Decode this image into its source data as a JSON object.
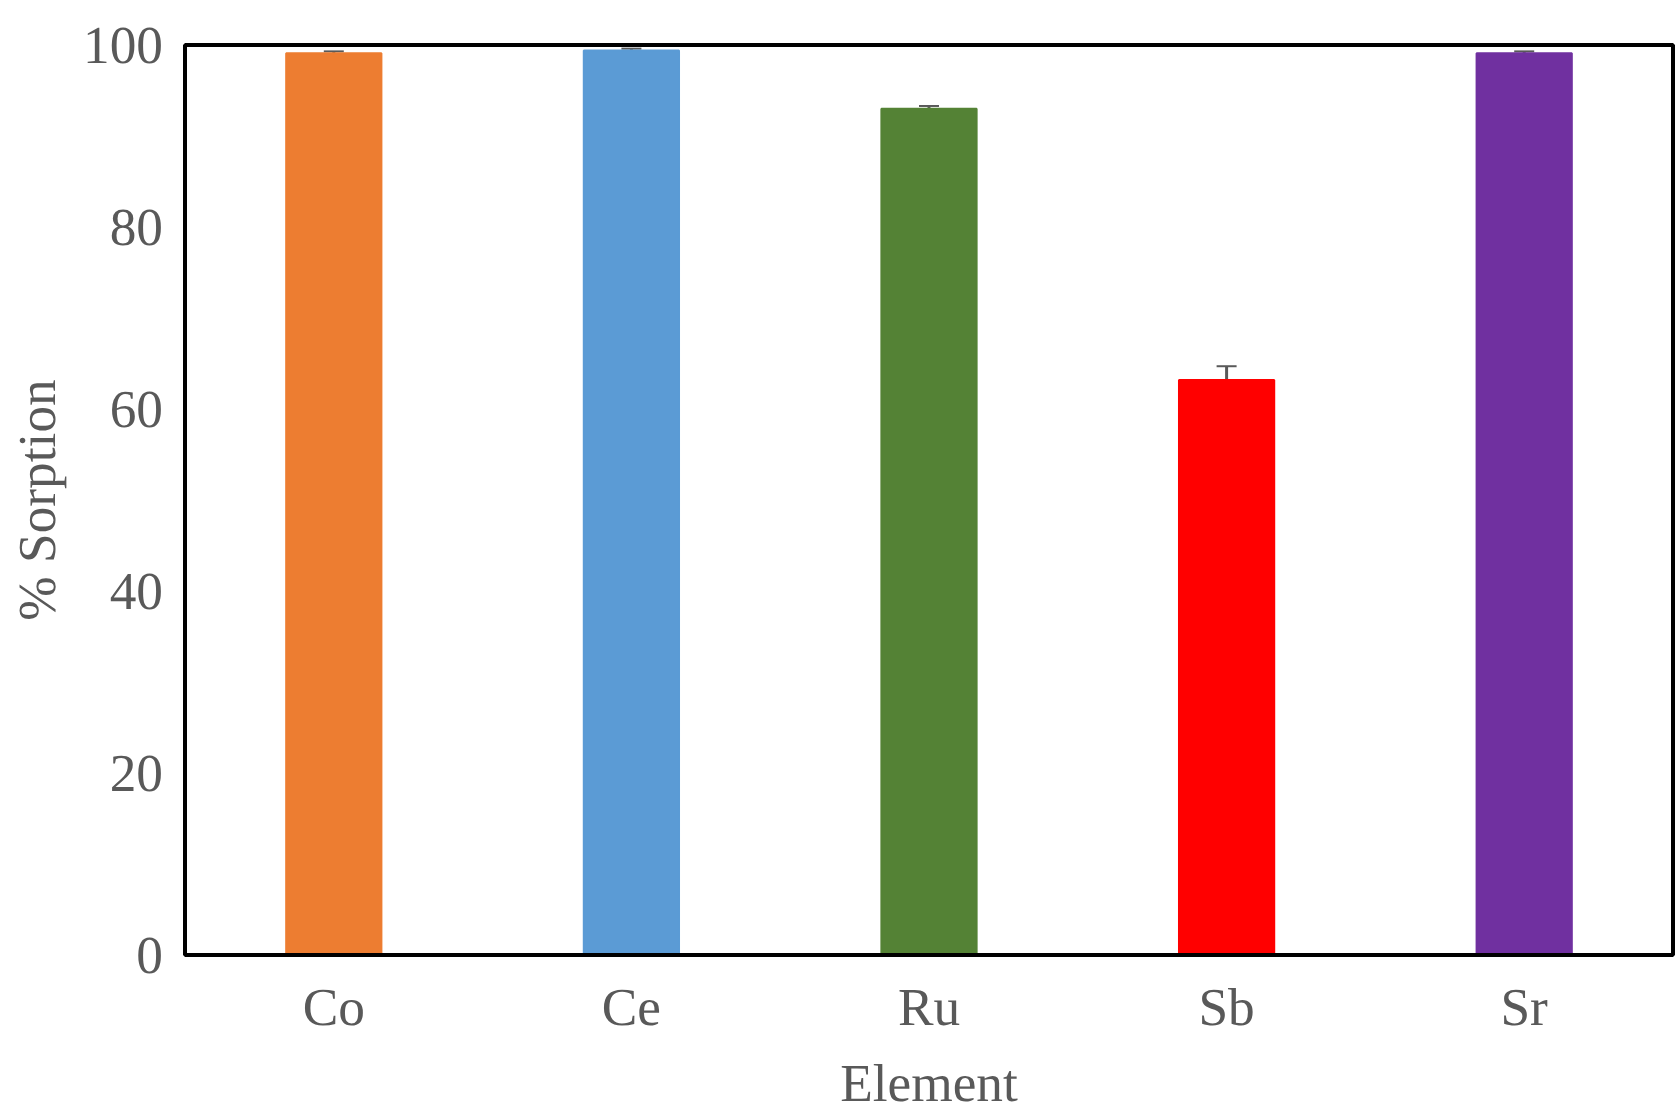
{
  "chart_data": {
    "type": "bar",
    "xlabel": "Element",
    "ylabel": "% Sorption",
    "categories": [
      "Co",
      "Ce",
      "Ru",
      "Sb",
      "Sr"
    ],
    "values": [
      99.1,
      99.4,
      93.0,
      63.2,
      99.1
    ],
    "colors": [
      "#ed7d31",
      "#5b9bd5",
      "#548235",
      "#ff0000",
      "#7030a0"
    ],
    "errors": [
      0.2,
      0.2,
      0.3,
      1.5,
      0.2
    ],
    "ylim": [
      0,
      100
    ],
    "yticks": [
      0,
      20,
      40,
      60,
      80,
      100
    ],
    "grid": false
  }
}
